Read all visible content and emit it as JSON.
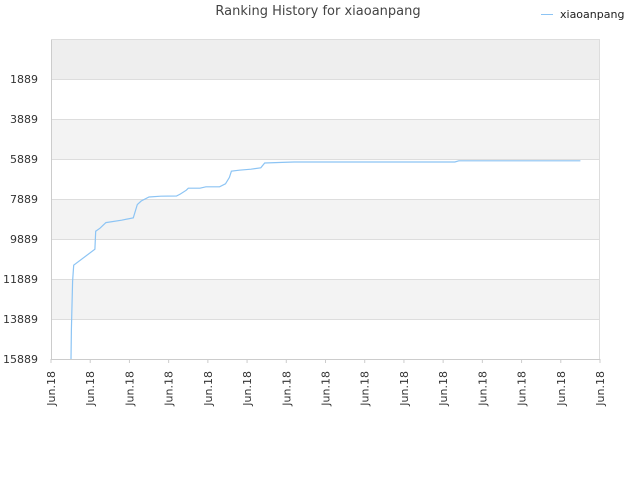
{
  "chart_data": {
    "type": "line",
    "title": "Ranking History for xiaoanpang",
    "xlabel": "",
    "ylabel": "",
    "y_inverted": true,
    "ylim": [
      15889,
      -111
    ],
    "y_ticks": [
      "1889",
      "3889",
      "5889",
      "7889",
      "9889",
      "11889",
      "13889",
      "15889"
    ],
    "y_tick_values": [
      1889,
      3889,
      5889,
      7889,
      9889,
      11889,
      13889,
      15889
    ],
    "x_ticks": [
      "Jun.18",
      "Jun.18",
      "Jun.18",
      "Jun.18",
      "Jun.18",
      "Jun.18",
      "Jun.18",
      "Jun.18",
      "Jun.18",
      "Jun.18",
      "Jun.18",
      "Jun.18",
      "Jun.18",
      "Jun.18",
      "Jun.18"
    ],
    "xlim": [
      0,
      14
    ],
    "grid": true,
    "legend_position": "top-right",
    "series": [
      {
        "name": "xiaoanpang",
        "color": "#8cc4f4",
        "points": [
          [
            0.51,
            15889
          ],
          [
            0.52,
            14400
          ],
          [
            0.55,
            12000
          ],
          [
            0.58,
            11200
          ],
          [
            1.12,
            10400
          ],
          [
            1.14,
            9500
          ],
          [
            1.25,
            9350
          ],
          [
            1.4,
            9070
          ],
          [
            1.8,
            8950
          ],
          [
            2.1,
            8830
          ],
          [
            2.2,
            8170
          ],
          [
            2.3,
            7990
          ],
          [
            2.5,
            7790
          ],
          [
            2.8,
            7750
          ],
          [
            3.2,
            7740
          ],
          [
            3.3,
            7640
          ],
          [
            3.45,
            7450
          ],
          [
            3.5,
            7350
          ],
          [
            3.8,
            7350
          ],
          [
            3.95,
            7280
          ],
          [
            4.3,
            7280
          ],
          [
            4.45,
            7130
          ],
          [
            4.55,
            6810
          ],
          [
            4.6,
            6500
          ],
          [
            4.8,
            6450
          ],
          [
            5.1,
            6400
          ],
          [
            5.35,
            6330
          ],
          [
            5.45,
            6090
          ],
          [
            5.9,
            6060
          ],
          [
            6.2,
            6040
          ],
          [
            7.0,
            6040
          ],
          [
            10.3,
            6040
          ],
          [
            10.4,
            5980
          ],
          [
            11.6,
            5980
          ],
          [
            13.5,
            5980
          ]
        ]
      }
    ]
  }
}
